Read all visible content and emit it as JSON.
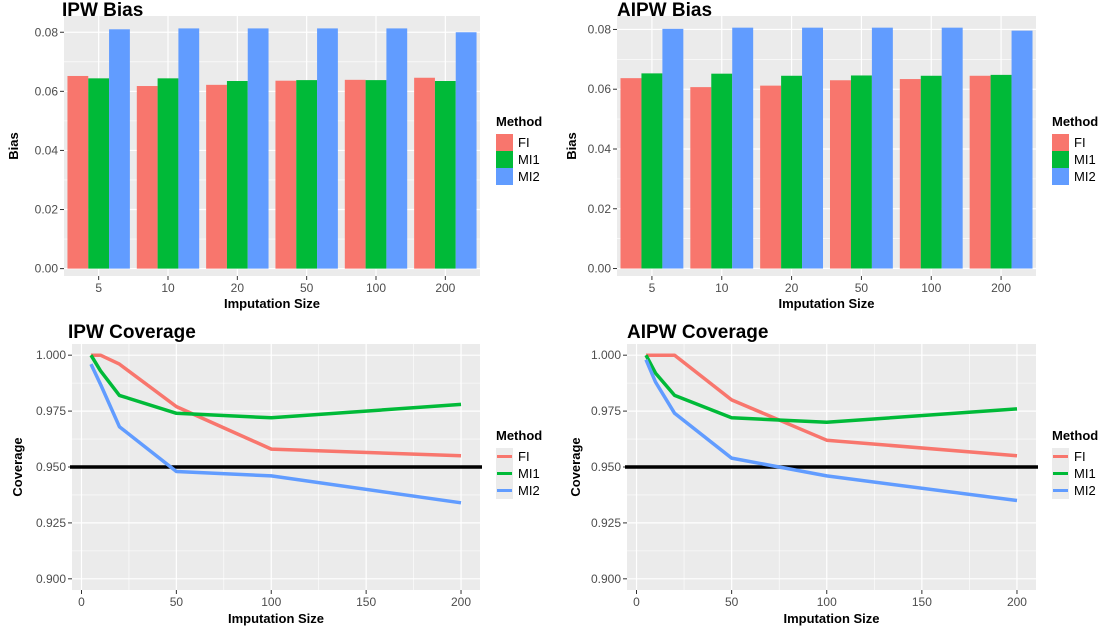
{
  "colors": {
    "FI": "#F8766D",
    "MI1": "#00BA38",
    "MI2": "#619CFF",
    "panel": "#EBEBEB",
    "grid": "#FFFFFF",
    "reference": "#000000"
  },
  "chart_data": [
    {
      "type": "bar",
      "title": "IPW Bias",
      "xlabel": "Imputation Size",
      "ylabel": "Bias",
      "categories": [
        "5",
        "10",
        "20",
        "50",
        "100",
        "200"
      ],
      "series": [
        {
          "name": "FI",
          "values": [
            0.0652,
            0.0618,
            0.0622,
            0.0636,
            0.0639,
            0.0646
          ]
        },
        {
          "name": "MI1",
          "values": [
            0.0644,
            0.0644,
            0.0635,
            0.0638,
            0.0638,
            0.0635
          ]
        },
        {
          "name": "MI2",
          "values": [
            0.081,
            0.0813,
            0.0813,
            0.0813,
            0.0813,
            0.08
          ]
        }
      ],
      "ylim": [
        -0.0025,
        0.0855
      ],
      "yticks": [
        0,
        0.02,
        0.04,
        0.06,
        0.08
      ],
      "yticklabels": [
        "0.00",
        "0.02",
        "0.04",
        "0.06",
        "0.08"
      ],
      "legend": {
        "title": "Method",
        "position": "right"
      },
      "grid": true
    },
    {
      "type": "bar",
      "title": "AIPW Bias",
      "xlabel": "Imputation Size",
      "ylabel": "Bias",
      "categories": [
        "5",
        "10",
        "20",
        "50",
        "100",
        "200"
      ],
      "series": [
        {
          "name": "FI",
          "values": [
            0.0637,
            0.0607,
            0.0612,
            0.063,
            0.0634,
            0.0645
          ]
        },
        {
          "name": "MI1",
          "values": [
            0.0653,
            0.0652,
            0.0645,
            0.0646,
            0.0645,
            0.0648
          ]
        },
        {
          "name": "MI2",
          "values": [
            0.0802,
            0.0806,
            0.0806,
            0.0806,
            0.0806,
            0.0796
          ]
        }
      ],
      "ylim": [
        -0.0025,
        0.0845
      ],
      "yticks": [
        0,
        0.02,
        0.04,
        0.06,
        0.08
      ],
      "yticklabels": [
        "0.00",
        "0.02",
        "0.04",
        "0.06",
        "0.08"
      ],
      "legend": {
        "title": "Method",
        "position": "right"
      },
      "grid": true
    },
    {
      "type": "line",
      "title": "IPW Coverage",
      "xlabel": "Imputation Size",
      "ylabel": "Coverage",
      "series": [
        {
          "name": "FI",
          "x": [
            5,
            10,
            20,
            50,
            100,
            200
          ],
          "y": [
            1.0,
            1.0,
            0.996,
            0.977,
            0.958,
            0.955
          ]
        },
        {
          "name": "MI1",
          "x": [
            5,
            10,
            20,
            50,
            100,
            200
          ],
          "y": [
            1.0,
            0.993,
            0.982,
            0.974,
            0.972,
            0.978
          ]
        },
        {
          "name": "MI2",
          "x": [
            5,
            10,
            20,
            50,
            100,
            200
          ],
          "y": [
            0.996,
            0.987,
            0.968,
            0.948,
            0.946,
            0.934
          ]
        }
      ],
      "reference_line": 0.95,
      "xlim": [
        -5,
        210
      ],
      "ylim": [
        0.895,
        1.005
      ],
      "xticks": [
        0,
        50,
        100,
        150,
        200
      ],
      "xticklabels": [
        "0",
        "50",
        "100",
        "150",
        "200"
      ],
      "yticks": [
        0.9,
        0.925,
        0.95,
        0.975,
        1.0
      ],
      "yticklabels": [
        "0.900",
        "0.925",
        "0.950",
        "0.975",
        "1.000"
      ],
      "legend": {
        "title": "Method",
        "position": "right"
      },
      "grid": true
    },
    {
      "type": "line",
      "title": "AIPW Coverage",
      "xlabel": "Imputation Size",
      "ylabel": "Coverage",
      "series": [
        {
          "name": "FI",
          "x": [
            5,
            10,
            20,
            50,
            100,
            200
          ],
          "y": [
            1.0,
            1.0,
            1.0,
            0.98,
            0.962,
            0.955
          ]
        },
        {
          "name": "MI1",
          "x": [
            5,
            10,
            20,
            50,
            100,
            200
          ],
          "y": [
            1.0,
            0.992,
            0.982,
            0.972,
            0.97,
            0.976
          ]
        },
        {
          "name": "MI2",
          "x": [
            5,
            10,
            20,
            50,
            100,
            200
          ],
          "y": [
            0.998,
            0.988,
            0.974,
            0.954,
            0.946,
            0.935
          ]
        }
      ],
      "reference_line": 0.95,
      "xlim": [
        -5,
        210
      ],
      "ylim": [
        0.895,
        1.005
      ],
      "xticks": [
        0,
        50,
        100,
        150,
        200
      ],
      "xticklabels": [
        "0",
        "50",
        "100",
        "150",
        "200"
      ],
      "yticks": [
        0.9,
        0.925,
        0.95,
        0.975,
        1.0
      ],
      "yticklabels": [
        "0.900",
        "0.925",
        "0.950",
        "0.975",
        "1.000"
      ],
      "legend": {
        "title": "Method",
        "position": "right"
      },
      "grid": true
    }
  ]
}
